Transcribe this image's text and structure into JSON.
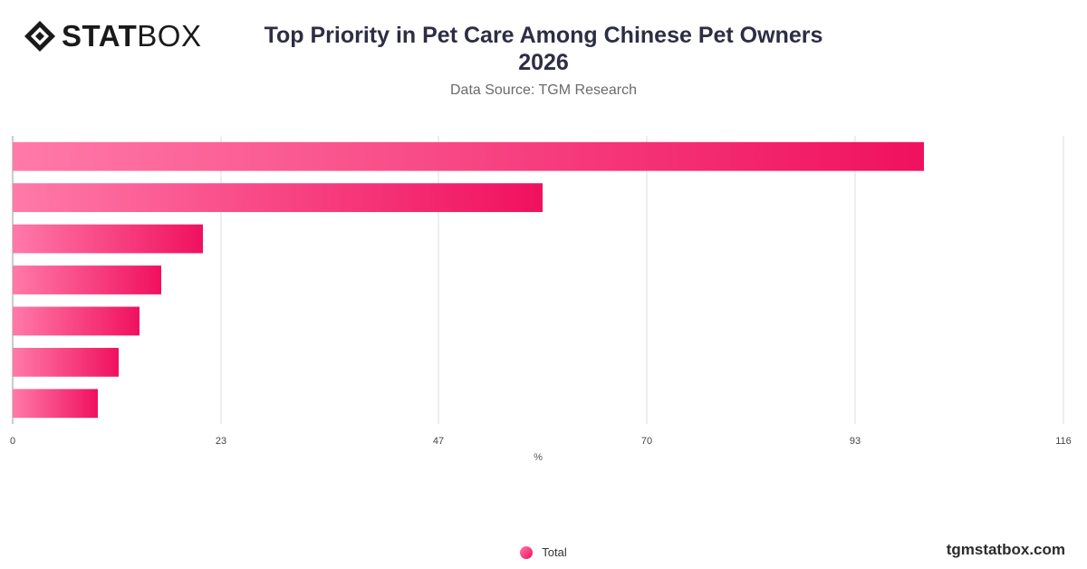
{
  "logo": {
    "bold": "STAT",
    "light": "BOX"
  },
  "header": {
    "title_line1": "Top Priority in Pet Care Among Chinese Pet Owners",
    "title_line2": "2026",
    "subtitle": "Data Source: TGM Research"
  },
  "footer": {
    "brand": "tgmstatbox.com"
  },
  "colors": {
    "bar_start": "#ff7aa8",
    "bar_end": "#f0115e",
    "grid": "#dddddd"
  },
  "chart_data": {
    "type": "bar",
    "orientation": "horizontal",
    "categories": [
      "",
      "",
      "",
      "",
      "",
      "",
      ""
    ],
    "series": [
      {
        "name": "Total",
        "values": [
          100.6,
          58.5,
          21,
          16.4,
          14,
          11.7,
          9.4
        ]
      }
    ],
    "xlabel": "%",
    "xlim": [
      0,
      116
    ],
    "xticks": [
      0,
      23,
      47,
      70,
      93,
      116
    ],
    "grid": true,
    "legend": "bottom-center"
  }
}
